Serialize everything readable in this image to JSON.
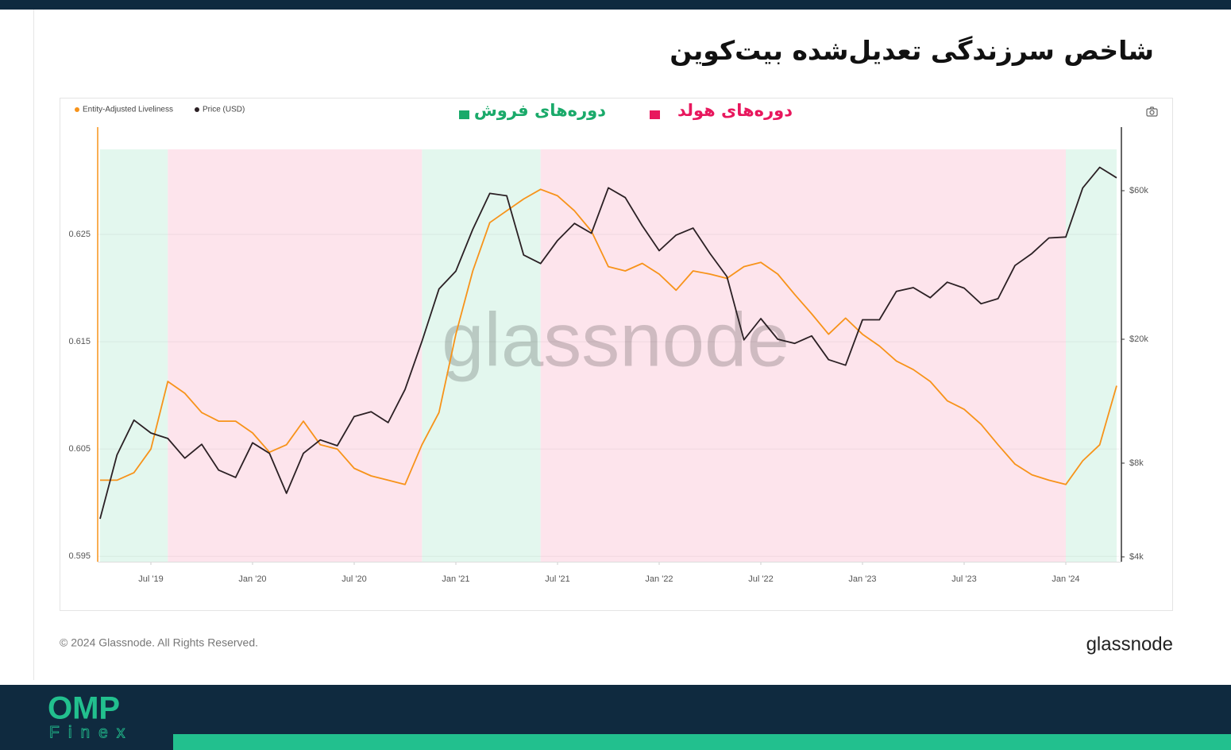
{
  "title": "شاخص سرزندگی تعدیل‌شده بیت‌کوین",
  "chart_data": {
    "type": "line",
    "watermark": "glassnode",
    "x": [
      "2019-04",
      "2019-05",
      "2019-06",
      "2019-07",
      "2019-08",
      "2019-09",
      "2019-10",
      "2019-11",
      "2019-12",
      "2020-01",
      "2020-02",
      "2020-03",
      "2020-04",
      "2020-05",
      "2020-06",
      "2020-07",
      "2020-08",
      "2020-09",
      "2020-10",
      "2020-11",
      "2020-12",
      "2021-01",
      "2021-02",
      "2021-03",
      "2021-04",
      "2021-05",
      "2021-06",
      "2021-07",
      "2021-08",
      "2021-09",
      "2021-10",
      "2021-11",
      "2021-12",
      "2022-01",
      "2022-02",
      "2022-03",
      "2022-04",
      "2022-05",
      "2022-06",
      "2022-07",
      "2022-08",
      "2022-09",
      "2022-10",
      "2022-11",
      "2022-12",
      "2023-01",
      "2023-02",
      "2023-03",
      "2023-04",
      "2023-05",
      "2023-06",
      "2023-07",
      "2023-08",
      "2023-09",
      "2023-10",
      "2023-11",
      "2023-12",
      "2024-01",
      "2024-02",
      "2024-03",
      "2024-04"
    ],
    "series": [
      {
        "name": "Entity-Adjusted Liveliness",
        "color": "#f7931a",
        "axis": "y",
        "values": [
          0.6021,
          0.6021,
          0.6028,
          0.605,
          0.6113,
          0.6102,
          0.6084,
          0.6076,
          0.6076,
          0.6065,
          0.6047,
          0.6054,
          0.6076,
          0.6054,
          0.605,
          0.6032,
          0.6025,
          0.6021,
          0.6017,
          0.6054,
          0.6084,
          0.6157,
          0.6216,
          0.6261,
          0.6272,
          0.6283,
          0.6292,
          0.6286,
          0.6272,
          0.6253,
          0.622,
          0.6216,
          0.6223,
          0.6213,
          0.6198,
          0.6216,
          0.6213,
          0.6209,
          0.622,
          0.6224,
          0.6213,
          0.6194,
          0.6176,
          0.6157,
          0.6172,
          0.6157,
          0.6146,
          0.6132,
          0.6124,
          0.6113,
          0.6095,
          0.6087,
          0.6073,
          0.6054,
          0.6036,
          0.6026,
          0.6021,
          0.6017,
          0.6039,
          0.6054,
          0.6109
        ]
      },
      {
        "name": "Price (USD)",
        "color": "#2b2024",
        "axis": "y2",
        "values": [
          5300,
          8500,
          11000,
          10000,
          9600,
          8300,
          9200,
          7600,
          7200,
          9300,
          8600,
          6400,
          8600,
          9500,
          9100,
          11300,
          11700,
          10800,
          13800,
          19700,
          29000,
          33100,
          45100,
          58800,
          57800,
          37300,
          35000,
          41500,
          47100,
          43800,
          61300,
          57000,
          46300,
          38500,
          43200,
          45500,
          37700,
          31800,
          19900,
          23300,
          20000,
          19400,
          20500,
          17200,
          16500,
          23100,
          23100,
          28500,
          29300,
          27200,
          30500,
          29200,
          26000,
          27000,
          34500,
          37700,
          42300,
          42600,
          61200,
          71300,
          66000
        ]
      }
    ],
    "periods": [
      {
        "name": "دوره‌های فروش",
        "color": "#1aaa6a",
        "fill": "#e3f7ee",
        "ranges": [
          [
            "2019-04",
            "2019-08"
          ],
          [
            "2020-11",
            "2021-06"
          ],
          [
            "2024-01",
            "2024-04"
          ]
        ]
      },
      {
        "name": "دوره‌های هولد",
        "color": "#e8175d",
        "fill": "#fde4ec",
        "ranges": [
          [
            "2019-08",
            "2020-11"
          ],
          [
            "2021-06",
            "2024-01"
          ]
        ]
      }
    ],
    "xlim": [
      "2019-04",
      "2024-04"
    ],
    "xticks": [
      {
        "value": "2019-07",
        "label": "Jul '19"
      },
      {
        "value": "2020-01",
        "label": "Jan '20"
      },
      {
        "value": "2020-07",
        "label": "Jul '20"
      },
      {
        "value": "2021-01",
        "label": "Jan '21"
      },
      {
        "value": "2021-07",
        "label": "Jul '21"
      },
      {
        "value": "2022-01",
        "label": "Jan '22"
      },
      {
        "value": "2022-07",
        "label": "Jul '22"
      },
      {
        "value": "2023-01",
        "label": "Jan '23"
      },
      {
        "value": "2023-07",
        "label": "Jul '23"
      },
      {
        "value": "2024-01",
        "label": "Jan '24"
      }
    ],
    "ylim": [
      0.5945,
      0.635
    ],
    "yticks": [
      0.595,
      0.605,
      0.615,
      0.625
    ],
    "y2lim": [
      3860,
      96000
    ],
    "y2scale": "log",
    "y2ticks": [
      {
        "value": 4000,
        "label": "$4k"
      },
      {
        "value": 8000,
        "label": "$8k"
      },
      {
        "value": 20000,
        "label": "$20k"
      },
      {
        "value": 60000,
        "label": "$60k"
      }
    ],
    "grid": true
  },
  "footer": {
    "copyright": "© 2024 Glassnode. All Rights Reserved.",
    "logo": "glassnode"
  },
  "brand": {
    "name": "OMP",
    "sub": "Finex"
  }
}
